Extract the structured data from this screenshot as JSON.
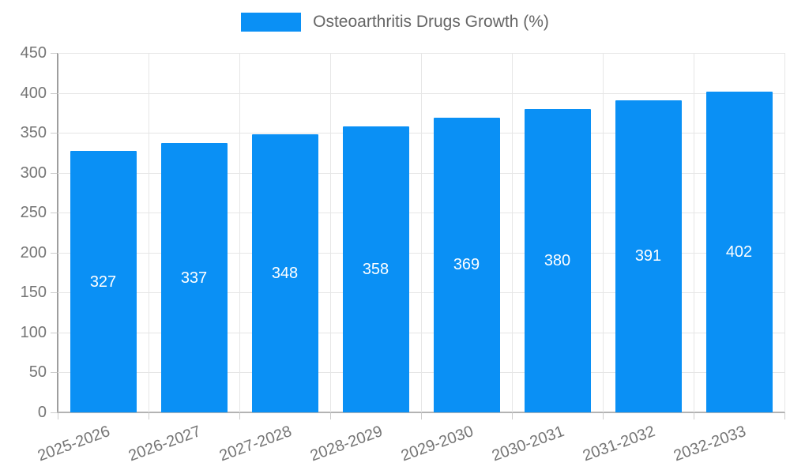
{
  "legend": {
    "label": "Osteoarthritis Drugs Growth (%)"
  },
  "colors": {
    "bar": "#0a90f5",
    "gridline": "#e6e6e6",
    "axis_line": "#9e9e9e",
    "tick_mark": "#cccccc",
    "tick_text": "#757575",
    "legend_text": "#666666",
    "value_label_text": "#ffffff"
  },
  "chart_data": {
    "type": "bar",
    "title": "",
    "xlabel": "",
    "ylabel": "",
    "categories": [
      "2025-2026",
      "2026-2027",
      "2027-2028",
      "2028-2029",
      "2029-2030",
      "2030-2031",
      "2031-2032",
      "2032-2033"
    ],
    "series": [
      {
        "name": "Osteoarthritis Drugs Growth (%)",
        "values": [
          327,
          337,
          348,
          358,
          369,
          380,
          391,
          402
        ]
      }
    ],
    "value_labels_shown": true,
    "value_label_position": "center-of-bar",
    "ylim": [
      0,
      450
    ],
    "yticks": [
      0,
      50,
      100,
      150,
      200,
      250,
      300,
      350,
      400,
      450
    ],
    "grid": true,
    "legend_position": "top-center",
    "x_label_rotation_deg": -20
  }
}
